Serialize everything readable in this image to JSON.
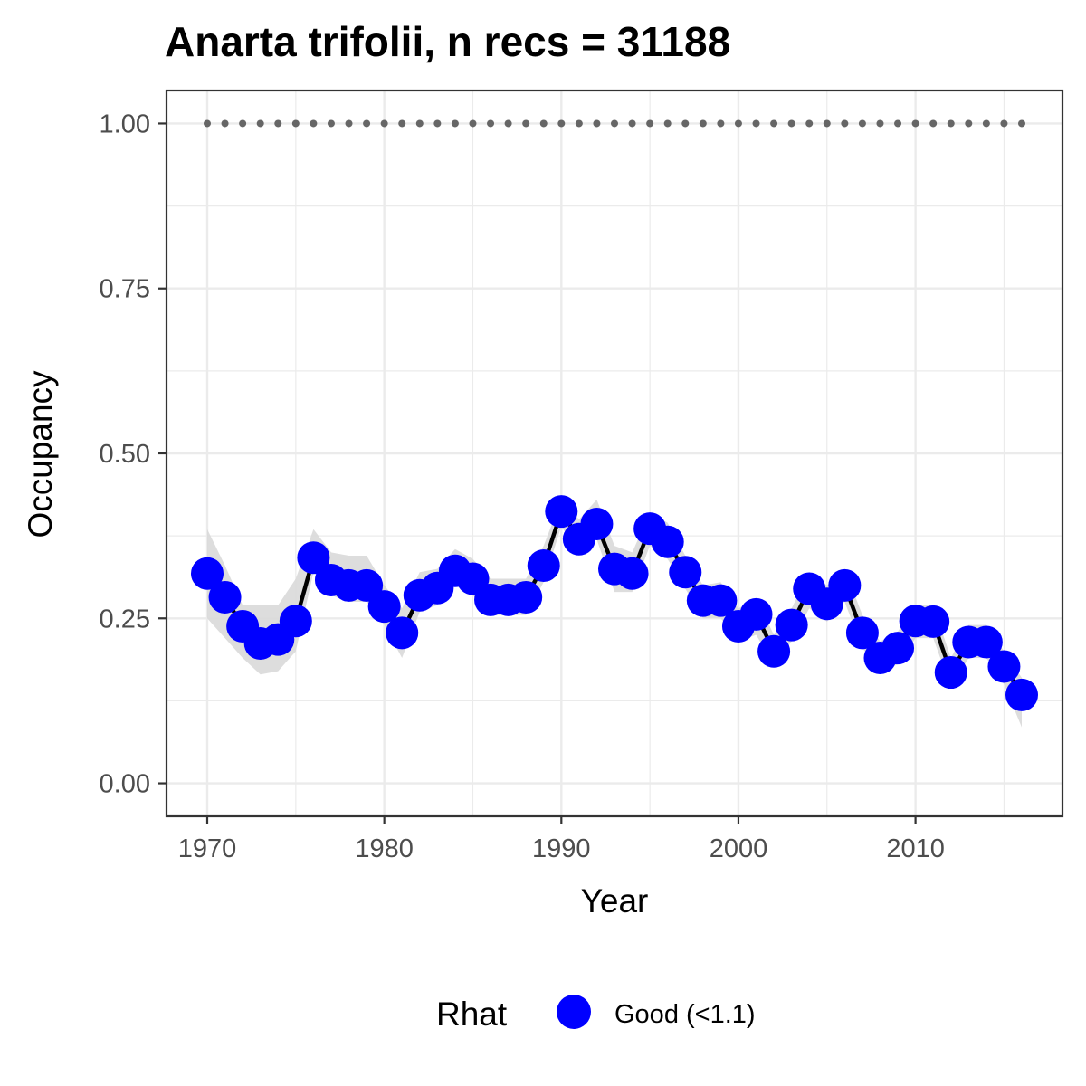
{
  "chart_data": {
    "type": "line",
    "title": "Anarta trifolii, n recs = 31188",
    "xlabel": "Year",
    "ylabel": "Occupancy",
    "xlim": [
      1967.7,
      2018.3
    ],
    "ylim": [
      -0.05,
      1.05
    ],
    "x_ticks": [
      1970,
      1980,
      1990,
      2000,
      2010
    ],
    "x_tick_labels": [
      "1970",
      "1980",
      "1990",
      "2000",
      "2010"
    ],
    "y_ticks": [
      0,
      0.25,
      0.5,
      0.75,
      1.0
    ],
    "y_tick_labels": [
      "0.00",
      "0.25",
      "0.50",
      "0.75",
      "1.00"
    ],
    "grid": true,
    "legend": {
      "title": "Rhat",
      "position": "bottom",
      "entries": [
        {
          "label": "Good (<1.1)",
          "color": "#0000ff"
        }
      ]
    },
    "colors": {
      "points": "#0000ff",
      "line": "#000000",
      "ribbon": "#d9d9d9",
      "reference_dots": "#666666",
      "grid": "#ebebeb",
      "panel_border": "#333333"
    },
    "x": [
      1970,
      1971,
      1972,
      1973,
      1974,
      1975,
      1976,
      1977,
      1978,
      1979,
      1980,
      1981,
      1982,
      1983,
      1984,
      1985,
      1986,
      1987,
      1988,
      1989,
      1990,
      1991,
      1992,
      1993,
      1994,
      1995,
      1996,
      1997,
      1998,
      1999,
      2000,
      2001,
      2002,
      2003,
      2004,
      2005,
      2006,
      2007,
      2008,
      2009,
      2010,
      2011,
      2012,
      2013,
      2014,
      2015,
      2016
    ],
    "series": [
      {
        "values": [
          0.318,
          0.282,
          0.238,
          0.212,
          0.218,
          0.246,
          0.342,
          0.308,
          0.3,
          0.3,
          0.268,
          0.228,
          0.285,
          0.296,
          0.322,
          0.31,
          0.278,
          0.278,
          0.282,
          0.33,
          0.412,
          0.37,
          0.393,
          0.325,
          0.318,
          0.386,
          0.366,
          0.32,
          0.277,
          0.277,
          0.238,
          0.256,
          0.2,
          0.24,
          0.295,
          0.272,
          0.3,
          0.228,
          0.19,
          0.205,
          0.246,
          0.245,
          0.168,
          0.214,
          0.214,
          0.177,
          0.134
        ],
        "lower": [
          0.25,
          0.22,
          0.19,
          0.165,
          0.17,
          0.2,
          0.32,
          0.285,
          0.275,
          0.275,
          0.24,
          0.19,
          0.26,
          0.27,
          0.3,
          0.285,
          0.255,
          0.255,
          0.255,
          0.305,
          0.39,
          0.345,
          0.37,
          0.29,
          0.29,
          0.36,
          0.34,
          0.295,
          0.25,
          0.25,
          0.215,
          0.225,
          0.18,
          0.215,
          0.265,
          0.245,
          0.275,
          0.205,
          0.17,
          0.18,
          0.22,
          0.22,
          0.145,
          0.19,
          0.19,
          0.15,
          0.085
        ],
        "upper": [
          0.385,
          0.33,
          0.27,
          0.27,
          0.27,
          0.31,
          0.385,
          0.35,
          0.345,
          0.345,
          0.3,
          0.265,
          0.32,
          0.325,
          0.355,
          0.34,
          0.31,
          0.31,
          0.31,
          0.36,
          0.43,
          0.4,
          0.43,
          0.36,
          0.35,
          0.41,
          0.395,
          0.345,
          0.3,
          0.305,
          0.265,
          0.28,
          0.225,
          0.265,
          0.32,
          0.3,
          0.325,
          0.255,
          0.215,
          0.23,
          0.27,
          0.27,
          0.19,
          0.24,
          0.24,
          0.2,
          0.16
        ]
      }
    ],
    "reference_line": {
      "y": 1.0,
      "x_from": 1970,
      "x_to": 2016
    }
  }
}
